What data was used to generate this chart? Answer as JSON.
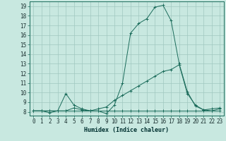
{
  "xlabel": "Humidex (Indice chaleur)",
  "ylabel": "",
  "background_color": "#c8e8e0",
  "grid_color": "#a0c8c0",
  "line_color": "#1a6b5a",
  "xlim": [
    -0.5,
    23.5
  ],
  "ylim": [
    7.6,
    19.5
  ],
  "xticks": [
    0,
    1,
    2,
    3,
    4,
    5,
    6,
    7,
    8,
    9,
    10,
    11,
    12,
    13,
    14,
    15,
    16,
    17,
    18,
    19,
    20,
    21,
    22,
    23
  ],
  "yticks": [
    8,
    9,
    10,
    11,
    12,
    13,
    14,
    15,
    16,
    17,
    18,
    19
  ],
  "line1_x": [
    0,
    1,
    2,
    3,
    4,
    5,
    6,
    7,
    8,
    9,
    10,
    11,
    12,
    13,
    14,
    15,
    16,
    17,
    18,
    19,
    20,
    21,
    22,
    23
  ],
  "line1_y": [
    8.1,
    8.1,
    7.9,
    8.1,
    9.9,
    8.7,
    8.3,
    8.1,
    8.1,
    7.8,
    8.7,
    11.0,
    16.2,
    17.2,
    17.7,
    18.9,
    19.1,
    17.5,
    13.0,
    10.1,
    8.6,
    8.2,
    8.3,
    8.4
  ],
  "line2_x": [
    0,
    1,
    2,
    3,
    4,
    5,
    6,
    7,
    8,
    9,
    10,
    11,
    12,
    13,
    14,
    15,
    16,
    17,
    18,
    19,
    20,
    21,
    22,
    23
  ],
  "line2_y": [
    8.1,
    8.1,
    8.1,
    8.1,
    8.1,
    8.4,
    8.2,
    8.1,
    8.3,
    8.5,
    9.2,
    9.7,
    10.2,
    10.7,
    11.2,
    11.7,
    12.2,
    12.4,
    12.9,
    9.9,
    8.7,
    8.2,
    8.1,
    8.3
  ],
  "line3_x": [
    0,
    1,
    2,
    3,
    4,
    5,
    6,
    7,
    8,
    9,
    10,
    11,
    12,
    13,
    14,
    15,
    16,
    17,
    18,
    19,
    20,
    21,
    22,
    23
  ],
  "line3_y": [
    8.1,
    8.1,
    8.1,
    8.1,
    8.1,
    8.1,
    8.1,
    8.1,
    8.1,
    8.1,
    8.1,
    8.1,
    8.1,
    8.1,
    8.1,
    8.1,
    8.1,
    8.1,
    8.1,
    8.1,
    8.1,
    8.1,
    8.1,
    8.1
  ],
  "markersize": 3,
  "linewidth": 0.7,
  "font_size": 5.5,
  "xlabel_fontsize": 6.0
}
